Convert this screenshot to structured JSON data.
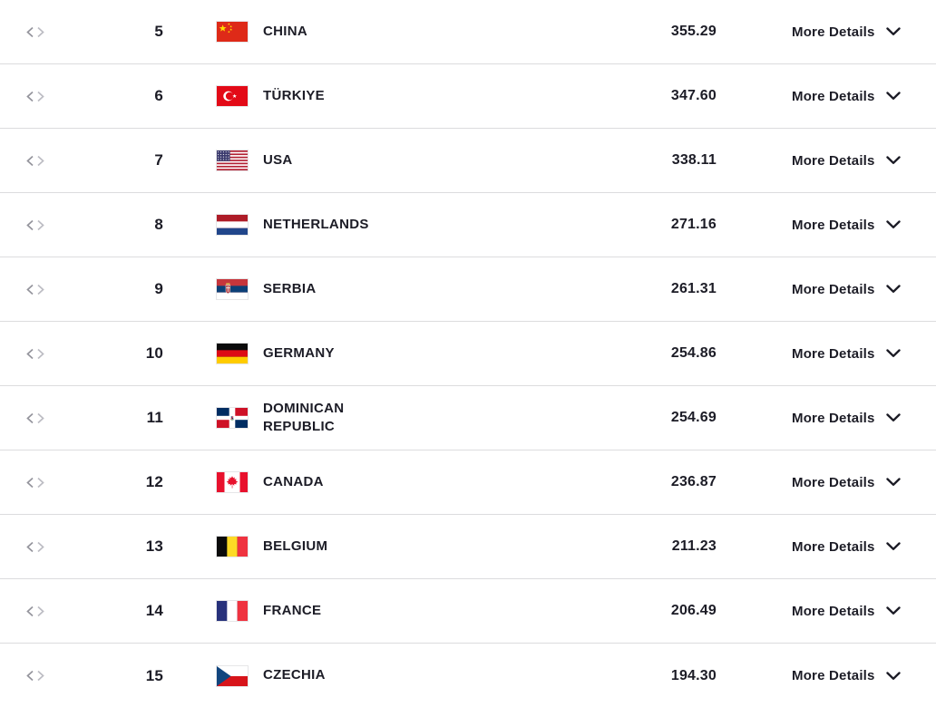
{
  "labels": {
    "more_details": "More Details"
  },
  "icons": {
    "trend": "chevrons-left-right-icon",
    "expand": "chevron-down-icon"
  },
  "colors": {
    "text": "#1c1c26",
    "divider": "#dcdcde",
    "trend_chevron_left": "#94949c",
    "trend_chevron_right": "#bcbcc3"
  },
  "table": {
    "rows": [
      {
        "rank": "5",
        "team": "CHINA",
        "flag_icon": "flag-china",
        "score": "355.29"
      },
      {
        "rank": "6",
        "team": "TÜRKIYE",
        "flag_icon": "flag-turkiye",
        "score": "347.60"
      },
      {
        "rank": "7",
        "team": "USA",
        "flag_icon": "flag-usa",
        "score": "338.11"
      },
      {
        "rank": "8",
        "team": "NETHERLANDS",
        "flag_icon": "flag-netherlands",
        "score": "271.16"
      },
      {
        "rank": "9",
        "team": "SERBIA",
        "flag_icon": "flag-serbia",
        "score": "261.31"
      },
      {
        "rank": "10",
        "team": "GERMANY",
        "flag_icon": "flag-germany",
        "score": "254.86"
      },
      {
        "rank": "11",
        "team": "DOMINICAN REPUBLIC",
        "flag_icon": "flag-dominican-republic",
        "score": "254.69"
      },
      {
        "rank": "12",
        "team": "CANADA",
        "flag_icon": "flag-canada",
        "score": "236.87"
      },
      {
        "rank": "13",
        "team": "BELGIUM",
        "flag_icon": "flag-belgium",
        "score": "211.23"
      },
      {
        "rank": "14",
        "team": "FRANCE",
        "flag_icon": "flag-france",
        "score": "206.49"
      },
      {
        "rank": "15",
        "team": "CZECHIA",
        "flag_icon": "flag-czechia",
        "score": "194.30"
      }
    ]
  }
}
